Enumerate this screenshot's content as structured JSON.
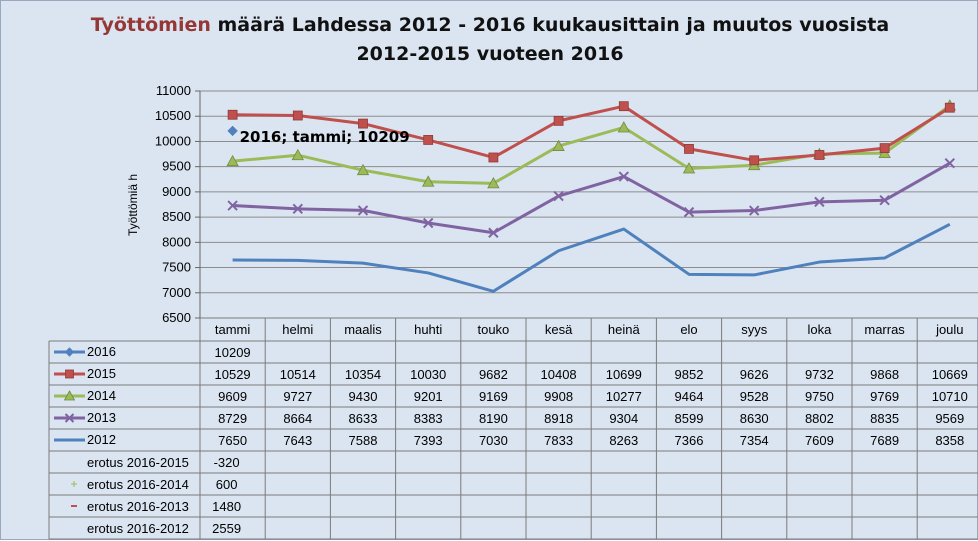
{
  "title": {
    "highlight": "Työttömien",
    "rest_line1": " määrä Lahdessa 2012 - 2016 kuukausittain ja muutos vuosista",
    "line2": "2012-2015 vuoteen 2016"
  },
  "chart_data": {
    "type": "line",
    "title": "Työttömien määrä Lahdessa 2012 - 2016 kuukausittain ja muutos vuosista 2012-2015 vuoteen 2016",
    "ylabel": "Työttömiä h",
    "xlabel": "",
    "ylim": [
      6500,
      11000
    ],
    "ytick_step": 500,
    "grid": true,
    "categories": [
      "tammi",
      "helmi",
      "maalis",
      "huhti",
      "touko",
      "kesä",
      "heinä",
      "elo",
      "syys",
      "loka",
      "marras",
      "joulu"
    ],
    "series": [
      {
        "name": "2016",
        "color": "#4f81bd",
        "marker": "diamond",
        "values": [
          10209,
          null,
          null,
          null,
          null,
          null,
          null,
          null,
          null,
          null,
          null,
          null
        ]
      },
      {
        "name": "2015",
        "color": "#c0504d",
        "marker": "square",
        "values": [
          10529,
          10514,
          10354,
          10030,
          9682,
          10408,
          10699,
          9852,
          9626,
          9732,
          9868,
          10669
        ]
      },
      {
        "name": "2014",
        "color": "#9bbb59",
        "marker": "triangle",
        "values": [
          9609,
          9727,
          9430,
          9201,
          9169,
          9908,
          10277,
          9464,
          9528,
          9750,
          9769,
          10710
        ]
      },
      {
        "name": "2013",
        "color": "#8064a2",
        "marker": "x",
        "values": [
          8729,
          8664,
          8633,
          8383,
          8190,
          8918,
          9304,
          8599,
          8630,
          8802,
          8835,
          9569
        ]
      },
      {
        "name": "2012",
        "color": "#4f81bd",
        "marker": "none",
        "values": [
          7650,
          7643,
          7588,
          7393,
          7030,
          7833,
          8263,
          7366,
          7354,
          7609,
          7689,
          8358
        ]
      }
    ],
    "difference_rows": [
      {
        "name": "erotus 2016-2015",
        "marker": "none",
        "values": [
          -320,
          null,
          null,
          null,
          null,
          null,
          null,
          null,
          null,
          null,
          null,
          null
        ]
      },
      {
        "name": "erotus 2016-2014",
        "marker": "plus",
        "values": [
          600,
          null,
          null,
          null,
          null,
          null,
          null,
          null,
          null,
          null,
          null,
          null
        ]
      },
      {
        "name": "erotus 2016-2013",
        "marker": "dash",
        "values": [
          1480,
          null,
          null,
          null,
          null,
          null,
          null,
          null,
          null,
          null,
          null,
          null
        ]
      },
      {
        "name": "erotus 2016-2012",
        "marker": "none",
        "values": [
          2559,
          null,
          null,
          null,
          null,
          null,
          null,
          null,
          null,
          null,
          null,
          null
        ]
      }
    ],
    "annotation": "2016; tammi; 10209"
  }
}
